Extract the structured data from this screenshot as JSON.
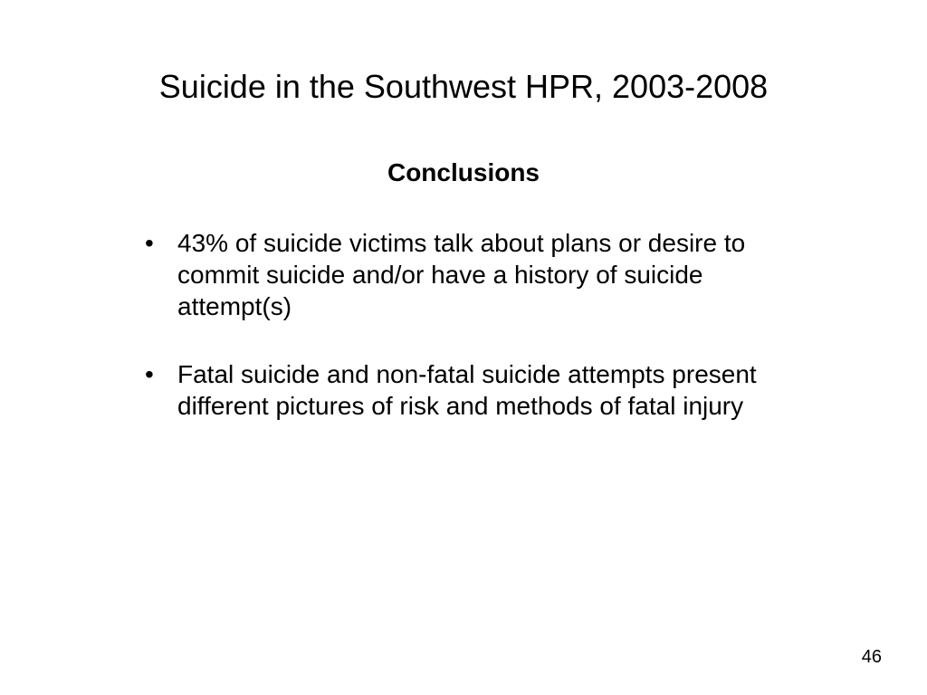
{
  "slide": {
    "title": "Suicide in the Southwest HPR, 2003-2008",
    "subtitle": "Conclusions",
    "bullets": [
      "43% of suicide victims talk about plans or desire to commit suicide and/or have a history of suicide attempt(s)",
      "Fatal suicide and non-fatal suicide attempts present different pictures of risk and methods of fatal injury"
    ],
    "page_number": "46",
    "colors": {
      "background": "#ffffff",
      "text": "#000000"
    },
    "typography": {
      "title_fontsize": 36,
      "title_weight": 400,
      "subtitle_fontsize": 28,
      "subtitle_weight": 700,
      "body_fontsize": 28,
      "page_number_fontsize": 20,
      "font_family": "Arial"
    }
  }
}
